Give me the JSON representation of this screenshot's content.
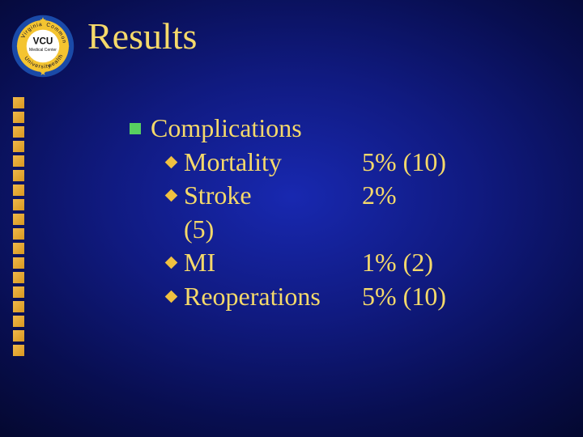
{
  "logo": {
    "outer_color": "#1a4aa8",
    "ring_color": "#f4c430",
    "top_text": "Common",
    "left_text": "Virginia",
    "right_text": "wealth",
    "bottom_text": "University",
    "center_top": "VCU",
    "center_bottom": "Medical Center",
    "center_bg": "#ffffff",
    "center_text_color": "#111111",
    "star_color": "#f4c430"
  },
  "title": {
    "text": "Results",
    "color": "#f5d96a"
  },
  "decor": {
    "square_count": 18,
    "square_color_a": "#f0b84a",
    "square_color_b": "#d89820"
  },
  "content": {
    "heading": {
      "text": "Complications",
      "color": "#f5d96a",
      "bullet_color": "#58d060"
    },
    "items": [
      {
        "label": "Mortality",
        "value": "5% (10)",
        "extra": ""
      },
      {
        "label": "Stroke",
        "value": "2%",
        "extra": "(5)"
      },
      {
        "label": "MI",
        "value": "1% (2)",
        "extra": ""
      },
      {
        "label": "Reoperations",
        "value": "5% (10)",
        "extra": ""
      }
    ],
    "item_color": "#f5d96a",
    "diamond_color": "#f0c040"
  },
  "background": {
    "gradient_inner": "#1828b0",
    "gradient_outer": "#020520"
  }
}
